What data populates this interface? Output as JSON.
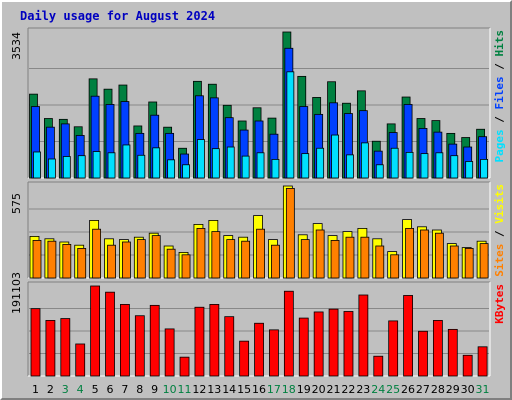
{
  "title": "Daily usage for August 2024",
  "colors": {
    "background": "#c0c0c0",
    "hits": "#008040",
    "files": "#0040ff",
    "pages": "#00e0ff",
    "visits": "#ffff00",
    "sites": "#ff8000",
    "kbytes": "#ff0000",
    "weekday_label": "#000000",
    "weekend_label": "#008040"
  },
  "chart_data": [
    {
      "type": "bar",
      "panel": "hits-files-pages",
      "ymax_label": "3534",
      "ylim": [
        0,
        3534
      ],
      "legend": [
        "Pages",
        "Files",
        "Hits"
      ],
      "legend_colors": [
        "#00e0ff",
        "#0040ff",
        "#008040"
      ],
      "categories": [
        "1",
        "2",
        "3",
        "4",
        "5",
        "6",
        "7",
        "8",
        "9",
        "10",
        "11",
        "12",
        "13",
        "14",
        "15",
        "16",
        "17",
        "18",
        "19",
        "20",
        "21",
        "22",
        "23",
        "24",
        "25",
        "26",
        "27",
        "28",
        "29",
        "30",
        "31"
      ],
      "weekend_days": [
        "3",
        "4",
        "10",
        "11",
        "17",
        "18",
        "24",
        "25",
        "31"
      ],
      "series": [
        {
          "name": "Hits",
          "values": [
            2030,
            1440,
            1420,
            1240,
            2400,
            2150,
            2250,
            1260,
            1840,
            1230,
            720,
            2340,
            2270,
            1760,
            1380,
            1700,
            1450,
            3534,
            2460,
            1950,
            2330,
            1810,
            2110,
            890,
            1310,
            1960,
            1440,
            1390,
            1080,
            980,
            1180
          ]
        },
        {
          "name": "Files",
          "values": [
            1730,
            1230,
            1310,
            1030,
            1980,
            1780,
            1850,
            1080,
            1520,
            1080,
            580,
            1990,
            1940,
            1460,
            1160,
            1380,
            1060,
            3140,
            1730,
            1540,
            1820,
            1560,
            1630,
            650,
            1100,
            1780,
            1200,
            1110,
            820,
            750,
            1000
          ]
        },
        {
          "name": "Pages",
          "values": [
            630,
            460,
            520,
            540,
            640,
            610,
            800,
            550,
            730,
            440,
            320,
            930,
            710,
            750,
            530,
            610,
            450,
            2570,
            590,
            720,
            1040,
            560,
            850,
            320,
            720,
            620,
            590,
            610,
            540,
            400,
            450
          ]
        }
      ]
    },
    {
      "type": "bar",
      "panel": "visits-sites",
      "ymax_label": "575",
      "ylim": [
        0,
        575
      ],
      "legend": [
        "Sites",
        "Visits"
      ],
      "legend_colors": [
        "#ff8000",
        "#ffff00"
      ],
      "categories": [
        "1",
        "2",
        "3",
        "4",
        "5",
        "6",
        "7",
        "8",
        "9",
        "10",
        "11",
        "12",
        "13",
        "14",
        "15",
        "16",
        "17",
        "18",
        "19",
        "20",
        "21",
        "22",
        "23",
        "24",
        "25",
        "26",
        "27",
        "28",
        "29",
        "30",
        "31"
      ],
      "series": [
        {
          "name": "Visits",
          "values": [
            260,
            245,
            225,
            205,
            360,
            245,
            240,
            255,
            280,
            200,
            160,
            335,
            360,
            265,
            255,
            390,
            240,
            575,
            270,
            340,
            265,
            290,
            310,
            245,
            165,
            365,
            320,
            300,
            215,
            190,
            230
          ]
        },
        {
          "name": "Sites",
          "values": [
            235,
            230,
            210,
            185,
            305,
            205,
            225,
            240,
            265,
            180,
            145,
            310,
            290,
            240,
            230,
            305,
            205,
            560,
            240,
            300,
            235,
            255,
            255,
            200,
            145,
            310,
            300,
            280,
            200,
            185,
            215
          ]
        }
      ]
    },
    {
      "type": "bar",
      "panel": "kbytes",
      "ymax_label": "191103",
      "ylim": [
        0,
        191103
      ],
      "legend": [
        "KBytes"
      ],
      "legend_colors": [
        "#ff0000"
      ],
      "categories": [
        "1",
        "2",
        "3",
        "4",
        "5",
        "6",
        "7",
        "8",
        "9",
        "10",
        "11",
        "12",
        "13",
        "14",
        "15",
        "16",
        "17",
        "18",
        "19",
        "20",
        "21",
        "22",
        "23",
        "24",
        "25",
        "26",
        "27",
        "28",
        "29",
        "30",
        "31"
      ],
      "series": [
        {
          "name": "KBytes",
          "values": [
            143000,
            118000,
            122000,
            68000,
            191103,
            178000,
            152000,
            128000,
            150000,
            100000,
            40000,
            146000,
            152000,
            126000,
            74000,
            112000,
            98000,
            180000,
            123000,
            136000,
            142000,
            137000,
            172000,
            42000,
            117000,
            171000,
            95000,
            118000,
            99000,
            44000,
            62000
          ]
        }
      ]
    }
  ]
}
